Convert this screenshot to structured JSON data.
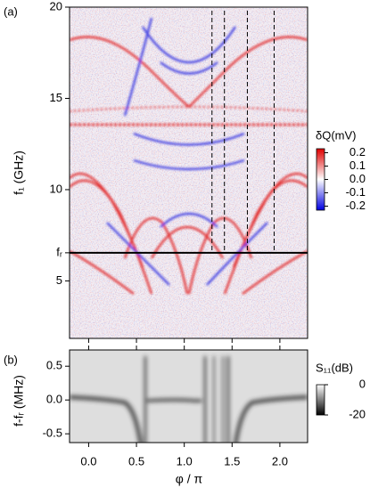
{
  "chart_data": [
    {
      "type": "heatmap",
      "panel_label": "(a)",
      "ylabel": "f₁ (GHz)",
      "xlim": [
        -0.2,
        2.29
      ],
      "ylim": [
        1.85,
        20
      ],
      "yticks": [
        5,
        10,
        15,
        20,
        {
          "value": 6.54,
          "label": "fᵣ"
        }
      ],
      "vlines": [
        1.29,
        1.42,
        1.66,
        1.94
      ],
      "colorbar": {
        "title": "δQ(mV)",
        "lim": [
          -0.23,
          0.23
        ],
        "ticks": [
          0.2,
          0.1,
          {
            "value": 0,
            "label": "0.0"
          },
          -0.1,
          -0.2
        ]
      }
    },
    {
      "type": "heatmap",
      "panel_label": "(b)",
      "ylabel": "f-fᵣ (MHz)",
      "xlabel": "φ / π",
      "xlim": [
        -0.2,
        2.29
      ],
      "ylim": [
        -0.63,
        0.74
      ],
      "xticks": [
        {
          "value": 0,
          "label": "0.0"
        },
        0.5,
        {
          "value": 1,
          "label": "1.0"
        },
        1.5,
        {
          "value": 2,
          "label": "2.0"
        }
      ],
      "yticks": [
        0.5,
        {
          "value": 0,
          "label": "0.0"
        },
        -0.5
      ],
      "colorbar": {
        "title": "S₁₁(dB)",
        "lim": [
          -20,
          0
        ],
        "ticks": [
          0,
          -20
        ]
      }
    }
  ]
}
